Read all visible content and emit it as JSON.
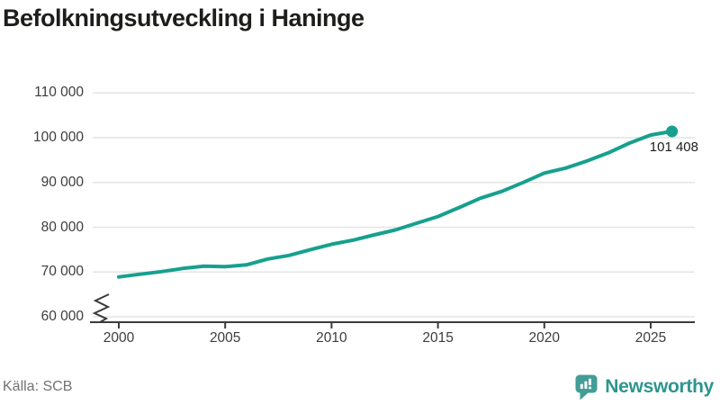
{
  "title": "Befolkningsutveckling i Haninge",
  "source": "Källa: SCB",
  "branding": {
    "name": "Newsworthy"
  },
  "colors": {
    "line": "#17a08e",
    "grid": "#e4e4e4",
    "axis": "#3b3b3a",
    "tick_label": "#3d3d3c",
    "end_label": "#1d1d1b",
    "source": "#727272",
    "brand_icon": "#429d96",
    "brand_text": "#2e958f"
  },
  "chart_data": {
    "type": "line",
    "title": "Befolkningsutveckling i Haninge",
    "x": [
      2000,
      2001,
      2002,
      2003,
      2004,
      2005,
      2006,
      2007,
      2008,
      2009,
      2010,
      2011,
      2012,
      2013,
      2014,
      2015,
      2016,
      2017,
      2018,
      2019,
      2020,
      2021,
      2022,
      2023,
      2024,
      2025,
      2026
    ],
    "values": [
      68900,
      69500,
      70100,
      70800,
      71300,
      71200,
      71600,
      72900,
      73700,
      75000,
      76200,
      77100,
      78300,
      79400,
      80900,
      82400,
      84400,
      86500,
      88000,
      90000,
      92100,
      93200,
      94800,
      96600,
      98800,
      100600,
      101408
    ],
    "last_point": {
      "year": 2026,
      "value": 101408,
      "label": "101 408"
    },
    "ylim": [
      60000,
      110000
    ],
    "yticks": [
      {
        "value": 60000,
        "label": "60 000"
      },
      {
        "value": 70000,
        "label": "70 000"
      },
      {
        "value": 80000,
        "label": "80 000"
      },
      {
        "value": 90000,
        "label": "90 000"
      },
      {
        "value": 100000,
        "label": "100 000"
      },
      {
        "value": 110000,
        "label": "110 000"
      }
    ],
    "xticks": [
      {
        "value": 2000,
        "label": "2000"
      },
      {
        "value": 2005,
        "label": "2005"
      },
      {
        "value": 2010,
        "label": "2010"
      },
      {
        "value": 2015,
        "label": "2015"
      },
      {
        "value": 2020,
        "label": "2020"
      },
      {
        "value": 2025,
        "label": "2025"
      }
    ],
    "axis_break": true,
    "grid": "horizontal",
    "legend": "none"
  }
}
